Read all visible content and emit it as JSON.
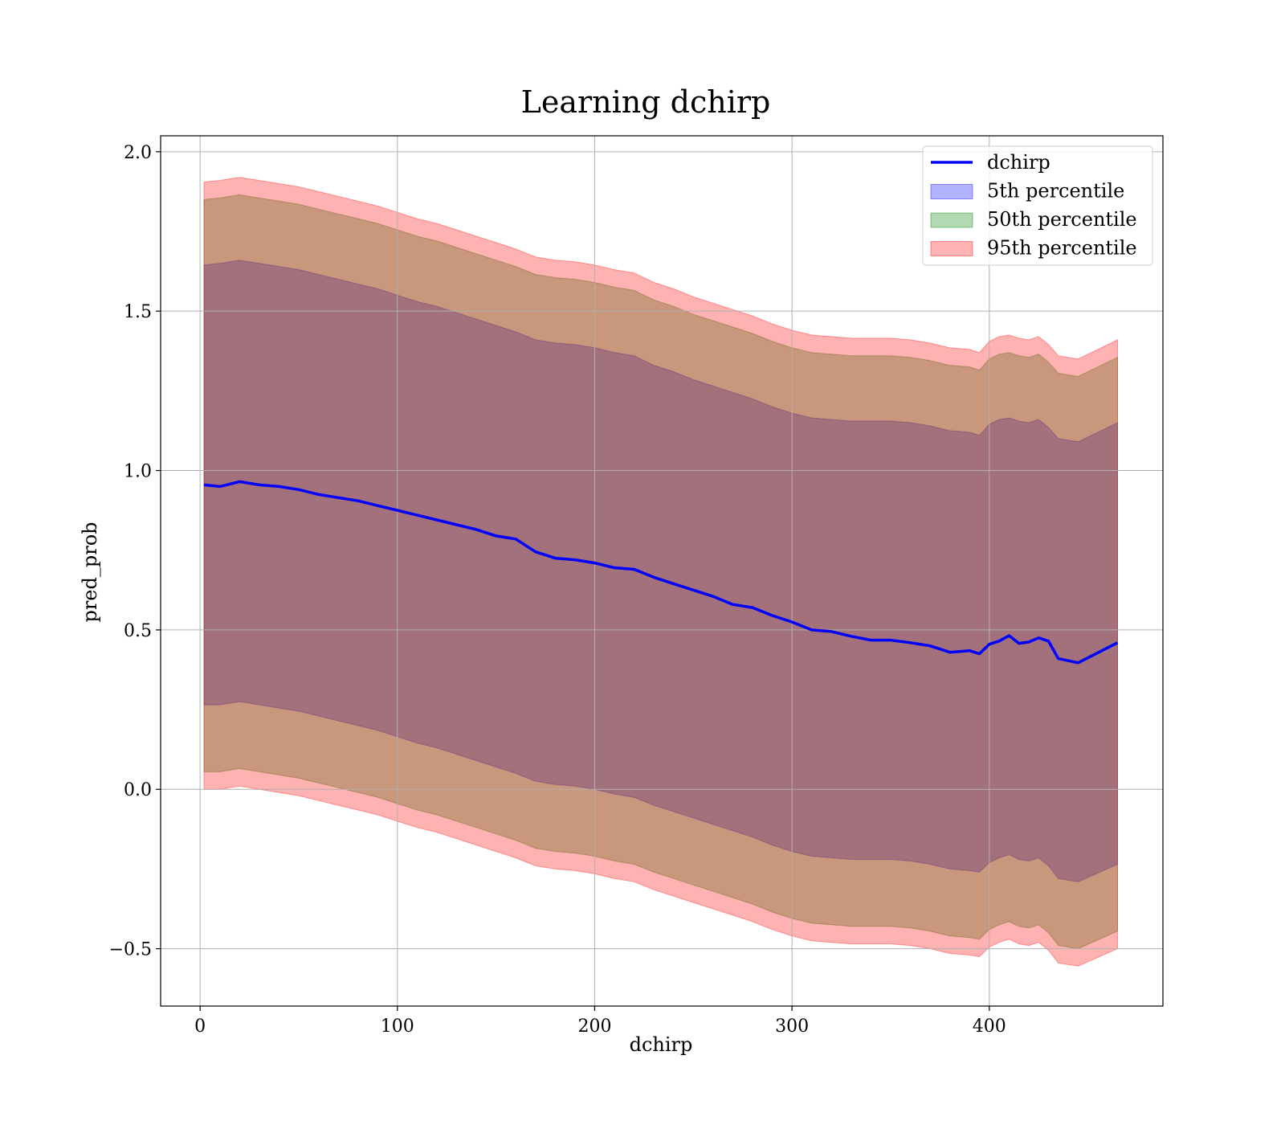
{
  "chart_data": {
    "type": "area",
    "title": "Learning dchirp",
    "xlabel": "dchirp",
    "ylabel": "pred_prob",
    "xlim": [
      -20,
      488
    ],
    "ylim": [
      -0.68,
      2.05
    ],
    "xticks": [
      0,
      100,
      200,
      300,
      400
    ],
    "yticks": [
      -0.5,
      0.0,
      0.5,
      1.0,
      1.5,
      2.0
    ],
    "xtick_labels": [
      "0",
      "100",
      "200",
      "300",
      "400"
    ],
    "ytick_labels": [
      "−0.5",
      "0.0",
      "0.5",
      "1.0",
      "1.5",
      "2.0"
    ],
    "grid": true,
    "legend_position": "top-right",
    "x": [
      2,
      10,
      20,
      30,
      40,
      50,
      60,
      70,
      80,
      90,
      100,
      110,
      120,
      130,
      140,
      150,
      160,
      170,
      180,
      190,
      200,
      210,
      220,
      230,
      240,
      250,
      260,
      270,
      280,
      290,
      300,
      310,
      320,
      330,
      340,
      350,
      360,
      370,
      380,
      390,
      395,
      400,
      405,
      410,
      415,
      420,
      425,
      430,
      435,
      445,
      465
    ],
    "series": [
      {
        "name": "dchirp",
        "kind": "line",
        "color": "#0000ff",
        "values": [
          0.955,
          0.95,
          0.965,
          0.955,
          0.95,
          0.94,
          0.925,
          0.915,
          0.905,
          0.89,
          0.875,
          0.86,
          0.845,
          0.83,
          0.815,
          0.795,
          0.785,
          0.745,
          0.725,
          0.72,
          0.71,
          0.695,
          0.69,
          0.665,
          0.645,
          0.625,
          0.605,
          0.58,
          0.57,
          0.545,
          0.525,
          0.5,
          0.495,
          0.48,
          0.468,
          0.468,
          0.46,
          0.45,
          0.43,
          0.435,
          0.425,
          0.455,
          0.465,
          0.482,
          0.458,
          0.462,
          0.475,
          0.465,
          0.41,
          0.397,
          0.46
        ]
      },
      {
        "name": "5th percentile",
        "kind": "band",
        "color": "#0000ff",
        "opacity": 0.3,
        "upper": [
          1.645,
          1.65,
          1.66,
          1.65,
          1.64,
          1.63,
          1.615,
          1.6,
          1.585,
          1.57,
          1.55,
          1.53,
          1.515,
          1.495,
          1.475,
          1.455,
          1.435,
          1.41,
          1.4,
          1.395,
          1.385,
          1.37,
          1.36,
          1.33,
          1.31,
          1.285,
          1.265,
          1.245,
          1.225,
          1.2,
          1.18,
          1.165,
          1.16,
          1.155,
          1.155,
          1.155,
          1.15,
          1.14,
          1.125,
          1.12,
          1.11,
          1.145,
          1.16,
          1.165,
          1.155,
          1.15,
          1.16,
          1.135,
          1.1,
          1.09,
          1.15
        ],
        "lower": [
          0.265,
          0.265,
          0.275,
          0.265,
          0.255,
          0.245,
          0.23,
          0.215,
          0.2,
          0.185,
          0.165,
          0.145,
          0.13,
          0.11,
          0.09,
          0.07,
          0.05,
          0.025,
          0.015,
          0.01,
          0.0,
          -0.015,
          -0.025,
          -0.05,
          -0.07,
          -0.09,
          -0.11,
          -0.13,
          -0.15,
          -0.175,
          -0.195,
          -0.21,
          -0.215,
          -0.22,
          -0.22,
          -0.22,
          -0.225,
          -0.235,
          -0.25,
          -0.255,
          -0.26,
          -0.23,
          -0.215,
          -0.205,
          -0.22,
          -0.225,
          -0.215,
          -0.24,
          -0.28,
          -0.29,
          -0.235
        ]
      },
      {
        "name": "50th percentile",
        "kind": "band",
        "color": "#008000",
        "opacity": 0.3,
        "upper": [
          1.85,
          1.855,
          1.865,
          1.855,
          1.845,
          1.835,
          1.82,
          1.805,
          1.79,
          1.775,
          1.755,
          1.735,
          1.72,
          1.7,
          1.68,
          1.66,
          1.64,
          1.615,
          1.605,
          1.6,
          1.59,
          1.575,
          1.565,
          1.535,
          1.515,
          1.49,
          1.47,
          1.45,
          1.43,
          1.405,
          1.385,
          1.37,
          1.365,
          1.36,
          1.36,
          1.36,
          1.355,
          1.345,
          1.33,
          1.325,
          1.315,
          1.35,
          1.365,
          1.37,
          1.36,
          1.355,
          1.365,
          1.34,
          1.305,
          1.295,
          1.355
        ],
        "lower": [
          0.055,
          0.055,
          0.065,
          0.055,
          0.045,
          0.035,
          0.02,
          0.005,
          -0.01,
          -0.025,
          -0.045,
          -0.065,
          -0.08,
          -0.1,
          -0.12,
          -0.14,
          -0.16,
          -0.185,
          -0.195,
          -0.2,
          -0.21,
          -0.225,
          -0.235,
          -0.26,
          -0.28,
          -0.3,
          -0.32,
          -0.34,
          -0.36,
          -0.385,
          -0.405,
          -0.42,
          -0.425,
          -0.43,
          -0.43,
          -0.43,
          -0.435,
          -0.445,
          -0.46,
          -0.465,
          -0.47,
          -0.44,
          -0.425,
          -0.415,
          -0.43,
          -0.435,
          -0.425,
          -0.45,
          -0.49,
          -0.5,
          -0.445
        ]
      },
      {
        "name": "95th percentile",
        "kind": "band",
        "color": "#ff0000",
        "opacity": 0.3,
        "upper": [
          1.905,
          1.91,
          1.92,
          1.91,
          1.9,
          1.89,
          1.875,
          1.86,
          1.845,
          1.83,
          1.81,
          1.79,
          1.775,
          1.755,
          1.735,
          1.715,
          1.695,
          1.67,
          1.66,
          1.655,
          1.645,
          1.63,
          1.62,
          1.59,
          1.57,
          1.545,
          1.525,
          1.505,
          1.485,
          1.46,
          1.44,
          1.425,
          1.42,
          1.415,
          1.415,
          1.415,
          1.41,
          1.4,
          1.385,
          1.38,
          1.37,
          1.405,
          1.42,
          1.425,
          1.415,
          1.41,
          1.42,
          1.395,
          1.36,
          1.35,
          1.41
        ],
        "lower": [
          0.0,
          0.0,
          0.01,
          0.0,
          -0.01,
          -0.02,
          -0.035,
          -0.05,
          -0.065,
          -0.08,
          -0.1,
          -0.12,
          -0.135,
          -0.155,
          -0.175,
          -0.195,
          -0.215,
          -0.24,
          -0.25,
          -0.255,
          -0.265,
          -0.28,
          -0.29,
          -0.315,
          -0.335,
          -0.355,
          -0.375,
          -0.395,
          -0.415,
          -0.44,
          -0.46,
          -0.475,
          -0.48,
          -0.485,
          -0.485,
          -0.485,
          -0.49,
          -0.5,
          -0.515,
          -0.52,
          -0.525,
          -0.495,
          -0.48,
          -0.47,
          -0.485,
          -0.49,
          -0.48,
          -0.505,
          -0.545,
          -0.555,
          -0.5
        ]
      }
    ]
  }
}
